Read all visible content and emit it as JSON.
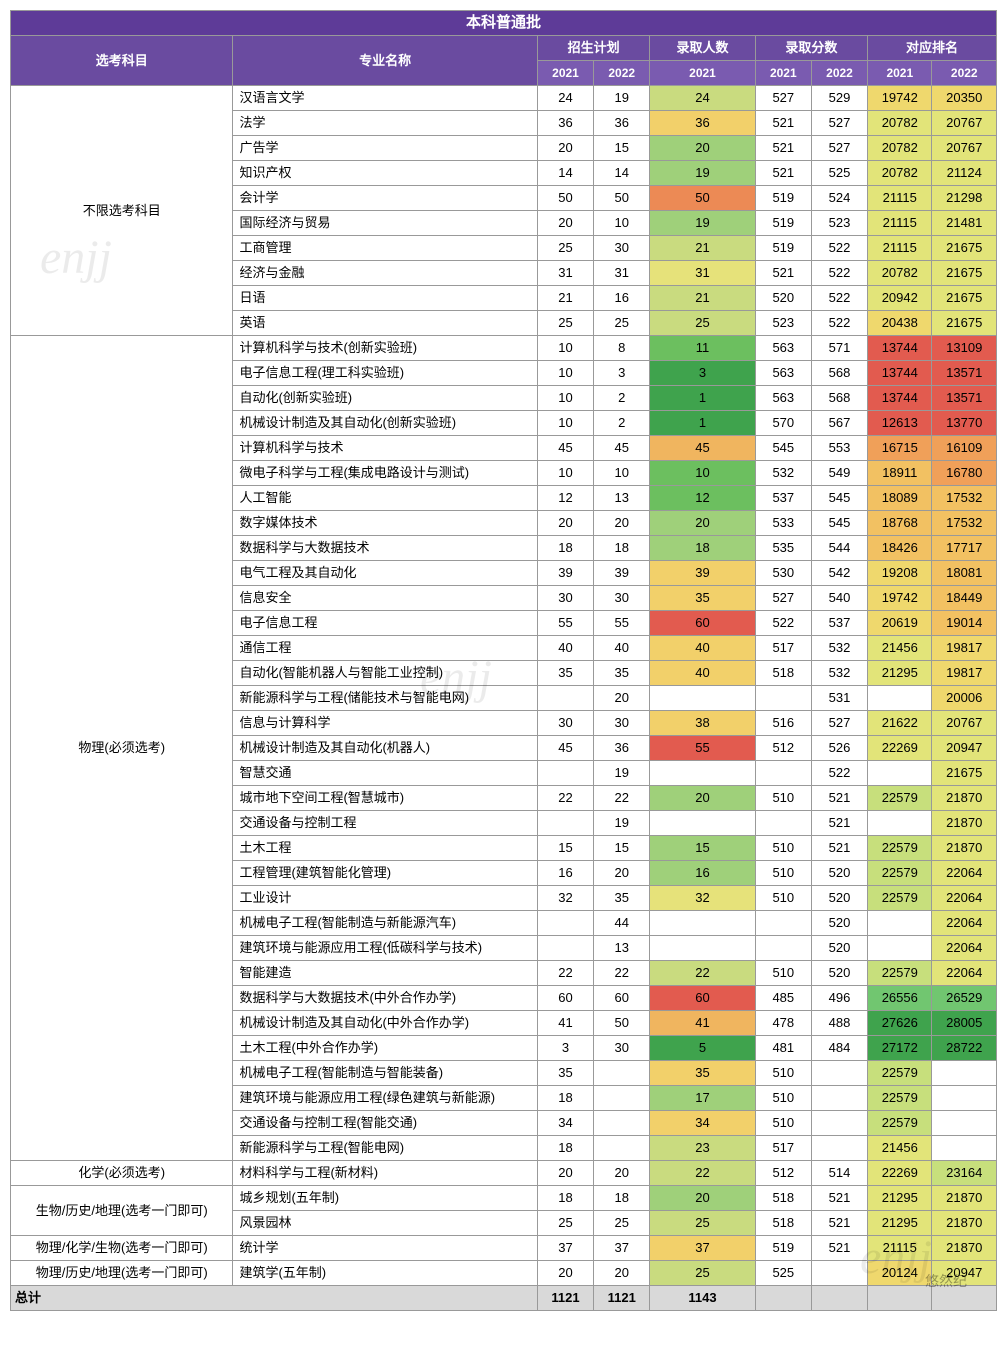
{
  "title": "本科普通批",
  "columns": {
    "subject": "选考科目",
    "major": "专业名称",
    "plan": "招生计划",
    "admitted": "录取人数",
    "score": "录取分数",
    "rank": "对应排名",
    "y2021": "2021",
    "y2022": "2022"
  },
  "col_widths": {
    "subject": 190,
    "major": 260,
    "num": 48,
    "admit": 90,
    "rank": 55
  },
  "colors": {
    "header_title": "#5e3b98",
    "header_group": "#6a4ba0",
    "header_year": "#7a5bb0",
    "total_bg": "#d9d9d9",
    "admit_scale": [
      "#3fa34d",
      "#6cbf5f",
      "#9fd07a",
      "#c9db7f",
      "#e6e27a",
      "#f2d06a",
      "#f0b55f",
      "#ec8a55",
      "#e25b4f"
    ],
    "rank_scale": [
      "#e25b4f",
      "#ec7a52",
      "#f0a059",
      "#f2c162",
      "#efd86d",
      "#e2e479",
      "#c7df7c",
      "#a4d77c",
      "#71c670",
      "#3fa34d"
    ]
  },
  "watermarks": [
    "enjj",
    "enjj",
    "enjj"
  ],
  "footer_watermark": "悠然纪",
  "groups": [
    {
      "subject": "不限选考科目",
      "rows": [
        {
          "major": "汉语言文学",
          "p21": 24,
          "p22": 19,
          "a21": 24,
          "s21": 527,
          "s22": 529,
          "r21": 19742,
          "r22": 20350
        },
        {
          "major": "法学",
          "p21": 36,
          "p22": 36,
          "a21": 36,
          "s21": 521,
          "s22": 527,
          "r21": 20782,
          "r22": 20767
        },
        {
          "major": "广告学",
          "p21": 20,
          "p22": 15,
          "a21": 20,
          "s21": 521,
          "s22": 527,
          "r21": 20782,
          "r22": 20767
        },
        {
          "major": "知识产权",
          "p21": 14,
          "p22": 14,
          "a21": 19,
          "s21": 521,
          "s22": 525,
          "r21": 20782,
          "r22": 21124
        },
        {
          "major": "会计学",
          "p21": 50,
          "p22": 50,
          "a21": 50,
          "s21": 519,
          "s22": 524,
          "r21": 21115,
          "r22": 21298
        },
        {
          "major": "国际经济与贸易",
          "p21": 20,
          "p22": 10,
          "a21": 19,
          "s21": 519,
          "s22": 523,
          "r21": 21115,
          "r22": 21481
        },
        {
          "major": "工商管理",
          "p21": 25,
          "p22": 30,
          "a21": 21,
          "s21": 519,
          "s22": 522,
          "r21": 21115,
          "r22": 21675
        },
        {
          "major": "经济与金融",
          "p21": 31,
          "p22": 31,
          "a21": 31,
          "s21": 521,
          "s22": 522,
          "r21": 20782,
          "r22": 21675
        },
        {
          "major": "日语",
          "p21": 21,
          "p22": 16,
          "a21": 21,
          "s21": 520,
          "s22": 522,
          "r21": 20942,
          "r22": 21675
        },
        {
          "major": "英语",
          "p21": 25,
          "p22": 25,
          "a21": 25,
          "s21": 523,
          "s22": 522,
          "r21": 20438,
          "r22": 21675
        }
      ]
    },
    {
      "subject": "物理(必须选考)",
      "rows": [
        {
          "major": "计算机科学与技术(创新实验班)",
          "p21": 10,
          "p22": 8,
          "a21": 11,
          "s21": 563,
          "s22": 571,
          "r21": 13744,
          "r22": 13109
        },
        {
          "major": "电子信息工程(理工科实验班)",
          "p21": 10,
          "p22": 3,
          "a21": 3,
          "s21": 563,
          "s22": 568,
          "r21": 13744,
          "r22": 13571
        },
        {
          "major": "自动化(创新实验班)",
          "p21": 10,
          "p22": 2,
          "a21": 1,
          "s21": 563,
          "s22": 568,
          "r21": 13744,
          "r22": 13571
        },
        {
          "major": "机械设计制造及其自动化(创新实验班)",
          "p21": 10,
          "p22": 2,
          "a21": 1,
          "s21": 570,
          "s22": 567,
          "r21": 12613,
          "r22": 13770
        },
        {
          "major": "计算机科学与技术",
          "p21": 45,
          "p22": 45,
          "a21": 45,
          "s21": 545,
          "s22": 553,
          "r21": 16715,
          "r22": 16109
        },
        {
          "major": "微电子科学与工程(集成电路设计与测试)",
          "p21": 10,
          "p22": 10,
          "a21": 10,
          "s21": 532,
          "s22": 549,
          "r21": 18911,
          "r22": 16780
        },
        {
          "major": "人工智能",
          "p21": 12,
          "p22": 13,
          "a21": 12,
          "s21": 537,
          "s22": 545,
          "r21": 18089,
          "r22": 17532
        },
        {
          "major": "数字媒体技术",
          "p21": 20,
          "p22": 20,
          "a21": 20,
          "s21": 533,
          "s22": 545,
          "r21": 18768,
          "r22": 17532
        },
        {
          "major": "数据科学与大数据技术",
          "p21": 18,
          "p22": 18,
          "a21": 18,
          "s21": 535,
          "s22": 544,
          "r21": 18426,
          "r22": 17717
        },
        {
          "major": "电气工程及其自动化",
          "p21": 39,
          "p22": 39,
          "a21": 39,
          "s21": 530,
          "s22": 542,
          "r21": 19208,
          "r22": 18081
        },
        {
          "major": "信息安全",
          "p21": 30,
          "p22": 30,
          "a21": 35,
          "s21": 527,
          "s22": 540,
          "r21": 19742,
          "r22": 18449
        },
        {
          "major": "电子信息工程",
          "p21": 55,
          "p22": 55,
          "a21": 60,
          "s21": 522,
          "s22": 537,
          "r21": 20619,
          "r22": 19014
        },
        {
          "major": "通信工程",
          "p21": 40,
          "p22": 40,
          "a21": 40,
          "s21": 517,
          "s22": 532,
          "r21": 21456,
          "r22": 19817
        },
        {
          "major": "自动化(智能机器人与智能工业控制)",
          "p21": 35,
          "p22": 35,
          "a21": 40,
          "s21": 518,
          "s22": 532,
          "r21": 21295,
          "r22": 19817
        },
        {
          "major": "新能源科学与工程(储能技术与智能电网)",
          "p21": null,
          "p22": 20,
          "a21": null,
          "s21": null,
          "s22": 531,
          "r21": null,
          "r22": 20006
        },
        {
          "major": "信息与计算科学",
          "p21": 30,
          "p22": 30,
          "a21": 38,
          "s21": 516,
          "s22": 527,
          "r21": 21622,
          "r22": 20767
        },
        {
          "major": "机械设计制造及其自动化(机器人)",
          "p21": 45,
          "p22": 36,
          "a21": 55,
          "s21": 512,
          "s22": 526,
          "r21": 22269,
          "r22": 20947
        },
        {
          "major": "智慧交通",
          "p21": null,
          "p22": 19,
          "a21": null,
          "s21": null,
          "s22": 522,
          "r21": null,
          "r22": 21675
        },
        {
          "major": "城市地下空间工程(智慧城市)",
          "p21": 22,
          "p22": 22,
          "a21": 20,
          "s21": 510,
          "s22": 521,
          "r21": 22579,
          "r22": 21870
        },
        {
          "major": "交通设备与控制工程",
          "p21": null,
          "p22": 19,
          "a21": null,
          "s21": null,
          "s22": 521,
          "r21": null,
          "r22": 21870
        },
        {
          "major": "土木工程",
          "p21": 15,
          "p22": 15,
          "a21": 15,
          "s21": 510,
          "s22": 521,
          "r21": 22579,
          "r22": 21870
        },
        {
          "major": "工程管理(建筑智能化管理)",
          "p21": 16,
          "p22": 20,
          "a21": 16,
          "s21": 510,
          "s22": 520,
          "r21": 22579,
          "r22": 22064
        },
        {
          "major": "工业设计",
          "p21": 32,
          "p22": 35,
          "a21": 32,
          "s21": 510,
          "s22": 520,
          "r21": 22579,
          "r22": 22064
        },
        {
          "major": "机械电子工程(智能制造与新能源汽车)",
          "p21": null,
          "p22": 44,
          "a21": null,
          "s21": null,
          "s22": 520,
          "r21": null,
          "r22": 22064
        },
        {
          "major": "建筑环境与能源应用工程(低碳科学与技术)",
          "p21": null,
          "p22": 13,
          "a21": null,
          "s21": null,
          "s22": 520,
          "r21": null,
          "r22": 22064
        },
        {
          "major": "智能建造",
          "p21": 22,
          "p22": 22,
          "a21": 22,
          "s21": 510,
          "s22": 520,
          "r21": 22579,
          "r22": 22064
        },
        {
          "major": "数据科学与大数据技术(中外合作办学)",
          "p21": 60,
          "p22": 60,
          "a21": 60,
          "s21": 485,
          "s22": 496,
          "r21": 26556,
          "r22": 26529
        },
        {
          "major": "机械设计制造及其自动化(中外合作办学)",
          "p21": 41,
          "p22": 50,
          "a21": 41,
          "s21": 478,
          "s22": 488,
          "r21": 27626,
          "r22": 28005
        },
        {
          "major": "土木工程(中外合作办学)",
          "p21": 3,
          "p22": 30,
          "a21": 5,
          "s21": 481,
          "s22": 484,
          "r21": 27172,
          "r22": 28722
        },
        {
          "major": "机械电子工程(智能制造与智能装备)",
          "p21": 35,
          "p22": null,
          "a21": 35,
          "s21": 510,
          "s22": null,
          "r21": 22579,
          "r22": null
        },
        {
          "major": "建筑环境与能源应用工程(绿色建筑与新能源)",
          "p21": 18,
          "p22": null,
          "a21": 17,
          "s21": 510,
          "s22": null,
          "r21": 22579,
          "r22": null
        },
        {
          "major": "交通设备与控制工程(智能交通)",
          "p21": 34,
          "p22": null,
          "a21": 34,
          "s21": 510,
          "s22": null,
          "r21": 22579,
          "r22": null
        },
        {
          "major": "新能源科学与工程(智能电网)",
          "p21": 18,
          "p22": null,
          "a21": 23,
          "s21": 517,
          "s22": null,
          "r21": 21456,
          "r22": null
        }
      ]
    },
    {
      "subject": "化学(必须选考)",
      "rows": [
        {
          "major": "材料科学与工程(新材料)",
          "p21": 20,
          "p22": 20,
          "a21": 22,
          "s21": 512,
          "s22": 514,
          "r21": 22269,
          "r22": 23164
        }
      ]
    },
    {
      "subject": "生物/历史/地理(选考一门即可)",
      "rows": [
        {
          "major": "城乡规划(五年制)",
          "p21": 18,
          "p22": 18,
          "a21": 20,
          "s21": 518,
          "s22": 521,
          "r21": 21295,
          "r22": 21870
        },
        {
          "major": "风景园林",
          "p21": 25,
          "p22": 25,
          "a21": 25,
          "s21": 518,
          "s22": 521,
          "r21": 21295,
          "r22": 21870
        }
      ]
    },
    {
      "subject": "物理/化学/生物(选考一门即可)",
      "rows": [
        {
          "major": "统计学",
          "p21": 37,
          "p22": 37,
          "a21": 37,
          "s21": 519,
          "s22": 521,
          "r21": 21115,
          "r22": 21870
        }
      ]
    },
    {
      "subject": "物理/历史/地理(选考一门即可)",
      "rows": [
        {
          "major": "建筑学(五年制)",
          "p21": 20,
          "p22": 20,
          "a21": 25,
          "s21": 525,
          "s22": null,
          "r21": 20124,
          "r22": 20947
        }
      ]
    }
  ],
  "totals": {
    "label": "总计",
    "p21": 1121,
    "p22": 1121,
    "a21": 1143
  }
}
